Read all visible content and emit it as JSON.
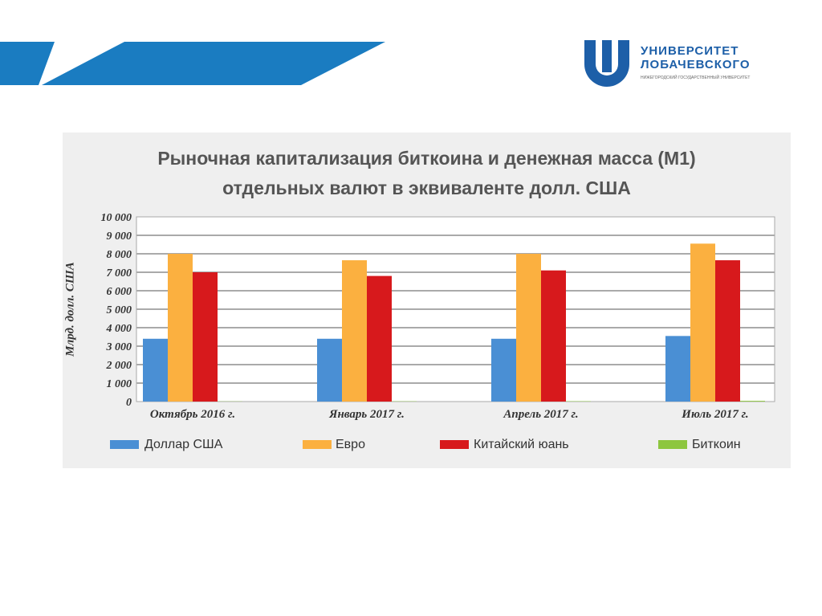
{
  "header": {
    "logo_line1": "УНИВЕРСИТЕТ",
    "logo_line2": "ЛОБАЧЕВСКОГО",
    "logo_line3": "НИЖЕГОРОДСКИЙ ГОСУДАРСТВЕННЫЙ УНИВЕРСИТЕТ",
    "accent": "#1a7cc1"
  },
  "chart_data": {
    "type": "bar",
    "title_line1": "Рыночная капитализация биткоина и денежная масса (М1)",
    "title_line2": "отдельных валют в эквиваленте долл. США",
    "ylabel": "Млрд. долл. США",
    "ylim": [
      0,
      10000
    ],
    "yticks": [
      "0",
      "1 000",
      "2 000",
      "3 000",
      "4 000",
      "5 000",
      "6 000",
      "7 000",
      "8 000",
      "9 000",
      "10 000"
    ],
    "grid": true,
    "legend_placement": "bottom",
    "categories": [
      "Октябрь 2016 г.",
      "Январь 2017 г.",
      "Апрель 2017 г.",
      "Июль 2017 г."
    ],
    "series": [
      {
        "name": "Доллар США",
        "color": "#4a8fd4",
        "values": [
          3400,
          3400,
          3400,
          3550
        ]
      },
      {
        "name": "Евро",
        "color": "#fbb040",
        "values": [
          8000,
          7650,
          8000,
          8550
        ]
      },
      {
        "name": "Китайский юань",
        "color": "#d7191c",
        "values": [
          7000,
          6800,
          7100,
          7650
        ]
      },
      {
        "name": "Биткоин",
        "color": "#8dc63f",
        "values": [
          10,
          15,
          20,
          40
        ]
      }
    ]
  }
}
